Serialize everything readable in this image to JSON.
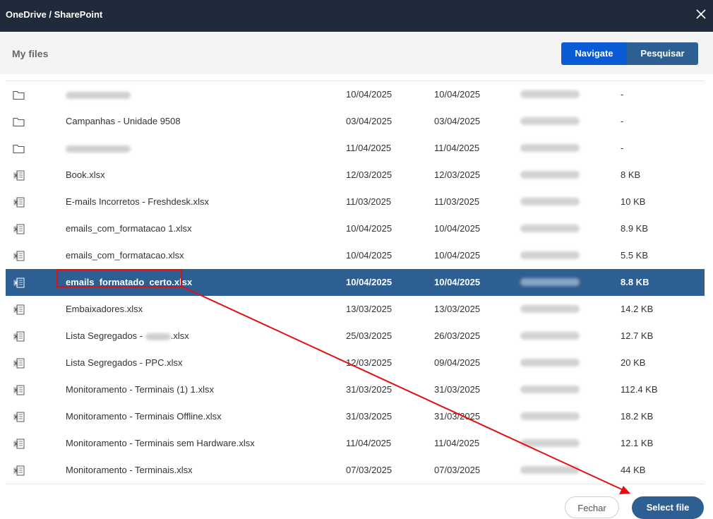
{
  "window": {
    "title": "OneDrive / SharePoint",
    "close_icon": "close-icon"
  },
  "breadcrumb": "My files",
  "mode_buttons": {
    "navigate": "Navigate",
    "search": "Pesquisar"
  },
  "files": [
    {
      "icon": "folder-icon",
      "name": "",
      "name_blurred": true,
      "created": "10/04/2025",
      "modified": "10/04/2025",
      "size": "-"
    },
    {
      "icon": "folder-icon",
      "name": "Campanhas - Unidade 9508",
      "created": "03/04/2025",
      "modified": "03/04/2025",
      "size": "-"
    },
    {
      "icon": "folder-icon",
      "name": "",
      "name_blurred": true,
      "created": "11/04/2025",
      "modified": "11/04/2025",
      "size": "-"
    },
    {
      "icon": "excel-file-icon",
      "name": "Book.xlsx",
      "created": "12/03/2025",
      "modified": "12/03/2025",
      "size": "8 KB"
    },
    {
      "icon": "excel-file-icon",
      "name": "E-mails Incorretos - Freshdesk.xlsx",
      "created": "11/03/2025",
      "modified": "11/03/2025",
      "size": "10 KB"
    },
    {
      "icon": "excel-file-icon",
      "name": "emails_com_formatacao 1.xlsx",
      "created": "10/04/2025",
      "modified": "10/04/2025",
      "size": "8.9 KB"
    },
    {
      "icon": "excel-file-icon",
      "name": "emails_com_formatacao.xlsx",
      "created": "10/04/2025",
      "modified": "10/04/2025",
      "size": "5.5 KB"
    },
    {
      "icon": "excel-file-icon",
      "name": "emails_formatado_certo.xlsx",
      "created": "10/04/2025",
      "modified": "10/04/2025",
      "size": "8.8 KB",
      "selected": true
    },
    {
      "icon": "excel-file-icon",
      "name": "Embaixadores.xlsx",
      "created": "13/03/2025",
      "modified": "13/03/2025",
      "size": "14.2 KB"
    },
    {
      "icon": "excel-file-icon",
      "name_prefix": "Lista Segregados - ",
      "name_suffix": ".xlsx",
      "created": "25/03/2025",
      "modified": "26/03/2025",
      "size": "12.7 KB"
    },
    {
      "icon": "excel-file-icon",
      "name": "Lista Segregados - PPC.xlsx",
      "created": "12/03/2025",
      "modified": "09/04/2025",
      "size": "20 KB"
    },
    {
      "icon": "excel-file-icon",
      "name": "Monitoramento - Terminais (1) 1.xlsx",
      "created": "31/03/2025",
      "modified": "31/03/2025",
      "size": "112.4 KB"
    },
    {
      "icon": "excel-file-icon",
      "name": "Monitoramento - Terminais Offline.xlsx",
      "created": "31/03/2025",
      "modified": "31/03/2025",
      "size": "18.2 KB"
    },
    {
      "icon": "excel-file-icon",
      "name": "Monitoramento - Terminais sem Hardware.xlsx",
      "created": "11/04/2025",
      "modified": "11/04/2025",
      "size": "12.1 KB"
    },
    {
      "icon": "excel-file-icon",
      "name": "Monitoramento - Terminais.xlsx",
      "created": "07/03/2025",
      "modified": "07/03/2025",
      "size": "44 KB"
    }
  ],
  "footer": {
    "cancel": "Fechar",
    "confirm": "Select file"
  },
  "colors": {
    "titlebar": "#1f2a3a",
    "accent": "#0a5bd4",
    "selected_row": "#2e5f93",
    "annotation": "#e01010"
  }
}
